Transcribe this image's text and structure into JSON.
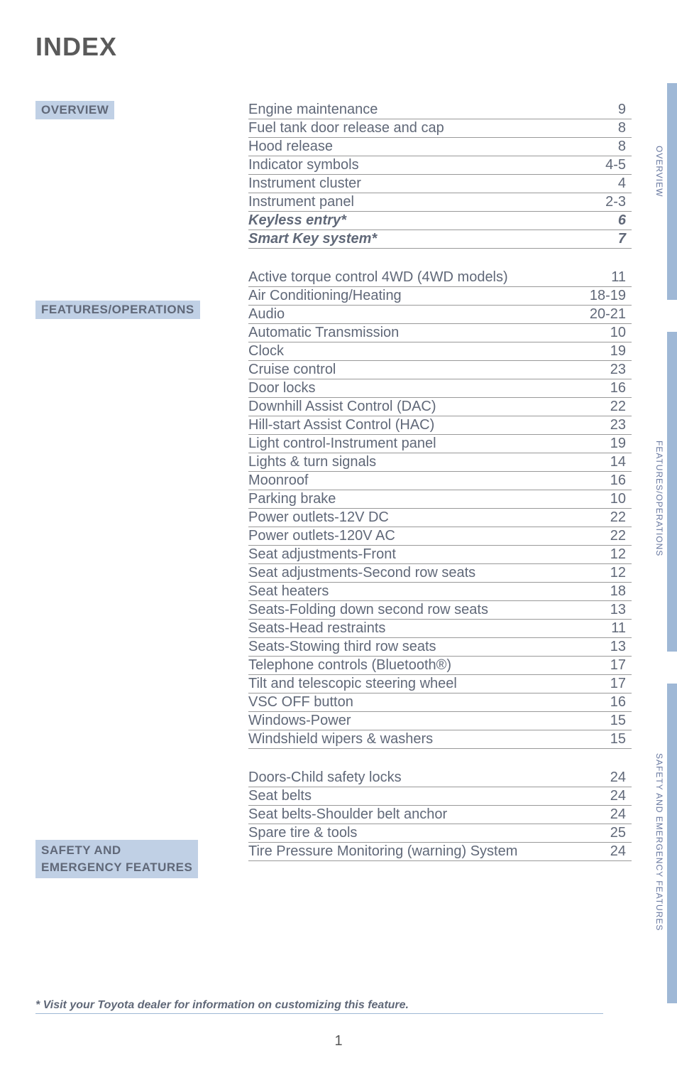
{
  "title": "INDEX",
  "sections": {
    "overview": {
      "label": "OVERVIEW",
      "items": [
        {
          "label": "Engine maintenance",
          "page": "9",
          "italic": false
        },
        {
          "label": "Fuel tank door release and cap",
          "page": "8",
          "italic": false
        },
        {
          "label": "Hood release",
          "page": "8",
          "italic": false
        },
        {
          "label": "Indicator symbols",
          "page": "4-5",
          "italic": false
        },
        {
          "label": "Instrument cluster",
          "page": "4",
          "italic": false
        },
        {
          "label": "Instrument panel",
          "page": "2-3",
          "italic": false
        },
        {
          "label": "Keyless entry*",
          "page": "6",
          "italic": true
        },
        {
          "label": "Smart Key system*",
          "page": "7",
          "italic": true
        }
      ]
    },
    "features": {
      "label": "FEATURES/OPERATIONS",
      "items": [
        {
          "label": "Active torque control 4WD (4WD models)",
          "page": "11"
        },
        {
          "label": "Air Conditioning/Heating",
          "page": "18-19"
        },
        {
          "label": "Audio",
          "page": "20-21"
        },
        {
          "label": "Automatic Transmission",
          "page": "10"
        },
        {
          "label": "Clock",
          "page": "19"
        },
        {
          "label": "Cruise control",
          "page": "23"
        },
        {
          "label": "Door locks",
          "page": "16"
        },
        {
          "label": "Downhill Assist Control (DAC)",
          "page": "22"
        },
        {
          "label": "Hill-start Assist Control (HAC)",
          "page": "23"
        },
        {
          "label": "Light control-Instrument panel",
          "page": "19"
        },
        {
          "label": "Lights & turn signals",
          "page": "14"
        },
        {
          "label": "Moonroof",
          "page": "16"
        },
        {
          "label": "Parking brake",
          "page": "10"
        },
        {
          "label": "Power outlets-12V DC",
          "page": "22"
        },
        {
          "label": "Power outlets-120V AC",
          "page": "22"
        },
        {
          "label": "Seat adjustments-Front",
          "page": "12"
        },
        {
          "label": "Seat adjustments-Second row seats",
          "page": "12"
        },
        {
          "label": "Seat heaters",
          "page": "18"
        },
        {
          "label": "Seats-Folding down second row seats",
          "page": "13"
        },
        {
          "label": "Seats-Head restraints",
          "page": "11"
        },
        {
          "label": "Seats-Stowing third row seats",
          "page": "13"
        },
        {
          "label": "Telephone controls (Bluetooth®)",
          "page": "17"
        },
        {
          "label": "Tilt and telescopic steering wheel",
          "page": "17"
        },
        {
          "label": "VSC OFF button",
          "page": "16"
        },
        {
          "label": "Windows-Power",
          "page": "15"
        },
        {
          "label": "Windshield wipers & washers",
          "page": "15"
        }
      ]
    },
    "safety": {
      "label1": "SAFETY AND",
      "label2": "EMERGENCY FEATURES",
      "items": [
        {
          "label": "Doors-Child safety locks",
          "page": "24"
        },
        {
          "label": "Seat belts",
          "page": "24"
        },
        {
          "label": "Seat belts-Shoulder belt anchor",
          "page": "24"
        },
        {
          "label": "Spare tire & tools",
          "page": "25"
        },
        {
          "label": "Tire Pressure Monitoring (warning) System",
          "page": "24"
        }
      ]
    }
  },
  "footnote": "* Visit your Toyota dealer for information on customizing this feature.",
  "pageNumber": "1",
  "tabs": {
    "t1": "OVERVIEW",
    "t2": "FEATURES/OPERATIONS",
    "t3": "SAFETY AND EMERGENCY FEATURES"
  },
  "colors": {
    "label_bg": "#c0d0e5",
    "text": "#606878",
    "tab_strip": "#9fb8d6",
    "border": "#999999"
  }
}
